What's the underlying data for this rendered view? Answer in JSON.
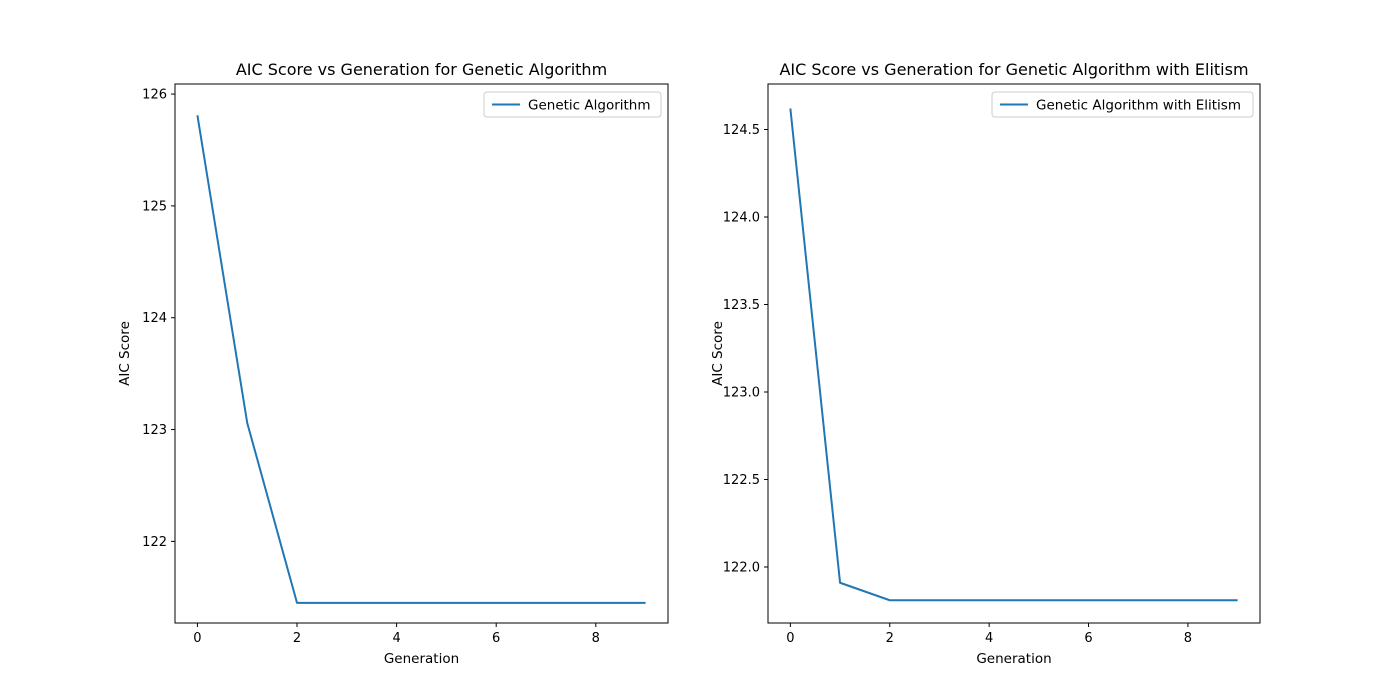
{
  "chart_data": [
    {
      "type": "line",
      "title": "AIC Score vs Generation for Genetic Algorithm",
      "xlabel": "Generation",
      "ylabel": "AIC Score",
      "xlim": [
        -0.45,
        9.45
      ],
      "ylim": [
        121.27,
        126.09
      ],
      "xticks": [
        0,
        2,
        4,
        6,
        8
      ],
      "xtick_labels": [
        "0",
        "2",
        "4",
        "6",
        "8"
      ],
      "yticks": [
        122,
        123,
        124,
        125,
        126
      ],
      "ytick_labels": [
        "122",
        "123",
        "124",
        "125",
        "126"
      ],
      "grid": false,
      "legend_position": "upper right",
      "x": [
        0,
        1,
        2,
        3,
        4,
        5,
        6,
        7,
        8,
        9
      ],
      "series": [
        {
          "name": "Genetic Algorithm",
          "color": "#1f77b4",
          "values": [
            125.81,
            123.06,
            121.45,
            121.45,
            121.45,
            121.45,
            121.45,
            121.45,
            121.45,
            121.45
          ]
        }
      ]
    },
    {
      "type": "line",
      "title": "AIC Score vs Generation for Genetic Algorithm with Elitism",
      "xlabel": "Generation",
      "ylabel": "AIC Score",
      "xlim": [
        -0.45,
        9.45
      ],
      "ylim": [
        121.68,
        124.76
      ],
      "xticks": [
        0,
        2,
        4,
        6,
        8
      ],
      "xtick_labels": [
        "0",
        "2",
        "4",
        "6",
        "8"
      ],
      "yticks": [
        122.0,
        122.5,
        123.0,
        123.5,
        124.0,
        124.5
      ],
      "ytick_labels": [
        "122.0",
        "122.5",
        "123.0",
        "123.5",
        "124.0",
        "124.5"
      ],
      "grid": false,
      "legend_position": "upper right",
      "x": [
        0,
        1,
        2,
        3,
        4,
        5,
        6,
        7,
        8,
        9
      ],
      "series": [
        {
          "name": "Genetic Algorithm with Elitism",
          "color": "#1f77b4",
          "values": [
            124.62,
            121.91,
            121.81,
            121.81,
            121.81,
            121.81,
            121.81,
            121.81,
            121.81,
            121.81
          ]
        }
      ]
    }
  ]
}
